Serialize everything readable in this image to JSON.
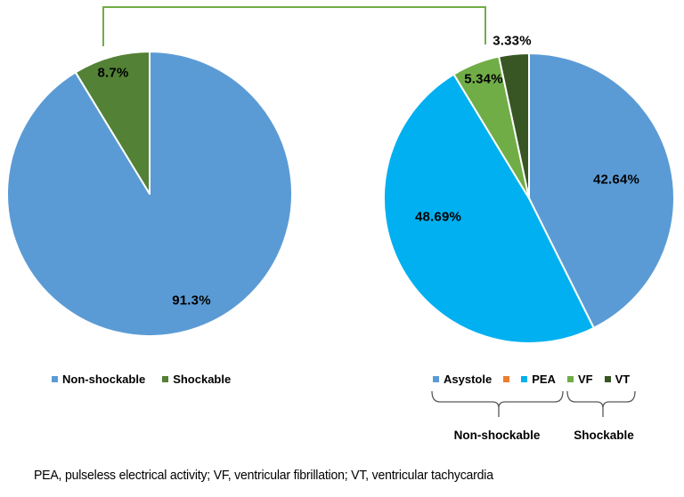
{
  "chart_data": [
    {
      "type": "pie",
      "name": "rhythm-type-pie",
      "categories": [
        "Non-shockable",
        "Shockable"
      ],
      "values": [
        91.3,
        8.7
      ],
      "colors": [
        "#5B9BD5",
        "#538135"
      ],
      "labels": [
        "91.3%",
        "8.7%"
      ],
      "legend_position": "bottom",
      "legend": [
        {
          "label": "Non-shockable",
          "color": "#5B9BD5"
        },
        {
          "label": "Shockable",
          "color": "#538135"
        }
      ]
    },
    {
      "type": "pie",
      "name": "specific-rhythm-pie",
      "categories": [
        "Asystole",
        "PEA",
        "VF",
        "VT"
      ],
      "values": [
        42.64,
        48.69,
        5.34,
        3.33
      ],
      "colors": [
        "#5B9BD5",
        "#00B0F0",
        "#70AD47",
        "#375623"
      ],
      "labels": [
        "42.64%",
        "48.69%",
        "5.34%",
        "3.33%"
      ],
      "legend_position": "bottom",
      "legend": [
        {
          "label": "Asystole",
          "color": "#5B9BD5"
        },
        {
          "label": "",
          "color": "#ED7D31"
        },
        {
          "label": "PEA",
          "color": "#00B0F0"
        },
        {
          "label": "VF",
          "color": "#70AD47"
        },
        {
          "label": "VT",
          "color": "#375623"
        }
      ],
      "legend_groups": [
        {
          "label": "Non-shockable",
          "members": [
            "Asystole",
            "PEA"
          ]
        },
        {
          "label": "Shockable",
          "members": [
            "VF",
            "VT"
          ]
        }
      ]
    }
  ],
  "connector": {
    "color": "#70AD47"
  },
  "brace_color": "#595959",
  "footnote": "PEA, pulseless electrical activity; VF, ventricular fibrillation; VT, ventricular tachycardia"
}
